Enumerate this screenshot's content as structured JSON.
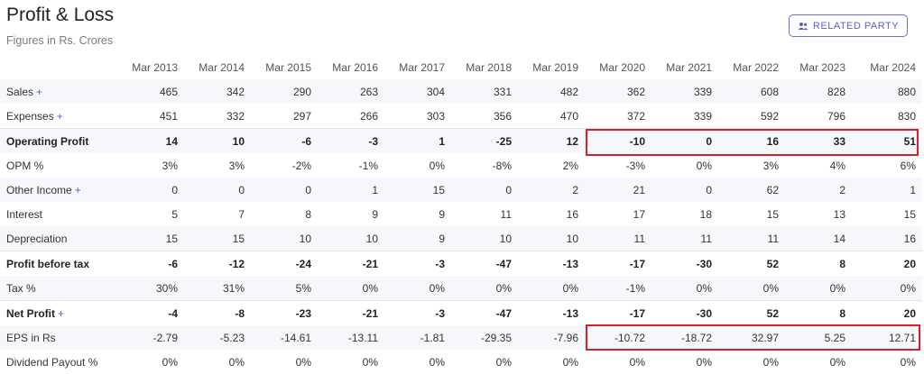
{
  "header": {
    "title": "Profit & Loss",
    "subtitle": "Figures in Rs. Crores",
    "related_party_label": "RELATED PARTY",
    "related_party_icon": "users-icon"
  },
  "table": {
    "years": [
      "Mar 2013",
      "Mar 2014",
      "Mar 2015",
      "Mar 2016",
      "Mar 2017",
      "Mar 2018",
      "Mar 2019",
      "Mar 2020",
      "Mar 2021",
      "Mar 2022",
      "Mar 2023",
      "Mar 2024"
    ],
    "rows": [
      {
        "label": "Sales",
        "expandable": true,
        "bold": false,
        "values": [
          "465",
          "342",
          "290",
          "263",
          "304",
          "331",
          "482",
          "362",
          "339",
          "608",
          "828",
          "880"
        ]
      },
      {
        "label": "Expenses",
        "expandable": true,
        "bold": false,
        "values": [
          "451",
          "332",
          "297",
          "266",
          "303",
          "356",
          "470",
          "372",
          "339",
          "592",
          "796",
          "830"
        ]
      },
      {
        "label": "Operating Profit",
        "expandable": false,
        "bold": true,
        "values": [
          "14",
          "10",
          "-6",
          "-3",
          "1",
          "-25",
          "12",
          "-10",
          "0",
          "16",
          "33",
          "51"
        ]
      },
      {
        "label": "OPM %",
        "expandable": false,
        "bold": false,
        "values": [
          "3%",
          "3%",
          "-2%",
          "-1%",
          "0%",
          "-8%",
          "2%",
          "-3%",
          "0%",
          "3%",
          "4%",
          "6%"
        ]
      },
      {
        "label": "Other Income",
        "expandable": true,
        "bold": false,
        "values": [
          "0",
          "0",
          "0",
          "1",
          "15",
          "0",
          "2",
          "21",
          "0",
          "62",
          "2",
          "1"
        ]
      },
      {
        "label": "Interest",
        "expandable": false,
        "bold": false,
        "values": [
          "5",
          "7",
          "8",
          "9",
          "9",
          "11",
          "16",
          "17",
          "18",
          "15",
          "13",
          "15"
        ]
      },
      {
        "label": "Depreciation",
        "expandable": false,
        "bold": false,
        "values": [
          "15",
          "15",
          "10",
          "10",
          "9",
          "10",
          "10",
          "11",
          "11",
          "11",
          "14",
          "16"
        ]
      },
      {
        "label": "Profit before tax",
        "expandable": false,
        "bold": true,
        "values": [
          "-6",
          "-12",
          "-24",
          "-21",
          "-3",
          "-47",
          "-13",
          "-17",
          "-30",
          "52",
          "8",
          "20"
        ]
      },
      {
        "label": "Tax %",
        "expandable": false,
        "bold": false,
        "values": [
          "30%",
          "31%",
          "5%",
          "0%",
          "0%",
          "0%",
          "0%",
          "-1%",
          "0%",
          "0%",
          "0%",
          "0%"
        ]
      },
      {
        "label": "Net Profit",
        "expandable": true,
        "bold": true,
        "values": [
          "-4",
          "-8",
          "-23",
          "-21",
          "-3",
          "-47",
          "-13",
          "-17",
          "-30",
          "52",
          "8",
          "20"
        ]
      },
      {
        "label": "EPS in Rs",
        "expandable": false,
        "bold": false,
        "values": [
          "-2.79",
          "-5.23",
          "-14.61",
          "-13.11",
          "-1.81",
          "-29.35",
          "-7.96",
          "-10.72",
          "-18.72",
          "32.97",
          "5.25",
          "12.71"
        ]
      },
      {
        "label": "Dividend Payout %",
        "expandable": false,
        "bold": false,
        "values": [
          "0%",
          "0%",
          "0%",
          "0%",
          "0%",
          "0%",
          "0%",
          "0%",
          "0%",
          "0%",
          "0%",
          "0%"
        ]
      }
    ],
    "plus_symbol": "+"
  },
  "highlight_color": "#d82028"
}
